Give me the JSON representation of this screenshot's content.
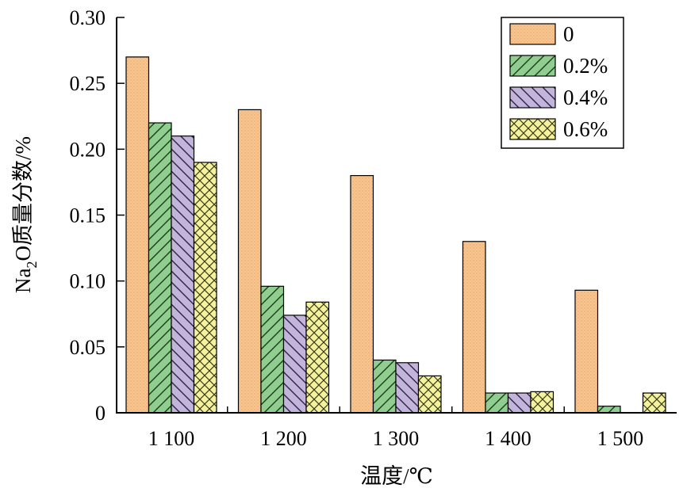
{
  "chart_data": {
    "type": "bar",
    "xlabel": "温度/℃",
    "ylabel_main": "Na",
    "ylabel_sub": "2",
    "ylabel_rest": "O质量分数/%",
    "ylim": [
      0,
      0.3
    ],
    "yticks": [
      0,
      0.05,
      0.1,
      0.15,
      0.2,
      0.25,
      0.3
    ],
    "ytick_labels": [
      "0",
      "0.05",
      "0.10",
      "0.15",
      "0.20",
      "0.25",
      "0.30"
    ],
    "categories": [
      "1 100",
      "1 200",
      "1 300",
      "1 400",
      "1 500"
    ],
    "legend_position": "top-right",
    "grid": false,
    "series": [
      {
        "name": "0",
        "values": [
          0.27,
          0.23,
          0.18,
          0.13,
          0.093
        ],
        "color": "#f9c58f",
        "pattern": "dots"
      },
      {
        "name": "0.2%",
        "values": [
          0.22,
          0.096,
          0.04,
          0.015,
          0.005
        ],
        "color": "#8fce8f",
        "pattern": "diag-right"
      },
      {
        "name": "0.4%",
        "values": [
          0.21,
          0.074,
          0.038,
          0.015,
          null
        ],
        "color": "#c3b4dc",
        "pattern": "diag-left"
      },
      {
        "name": "0.6%",
        "values": [
          0.19,
          0.084,
          0.028,
          0.016,
          0.015
        ],
        "color": "#f4f29a",
        "pattern": "cross"
      }
    ]
  }
}
